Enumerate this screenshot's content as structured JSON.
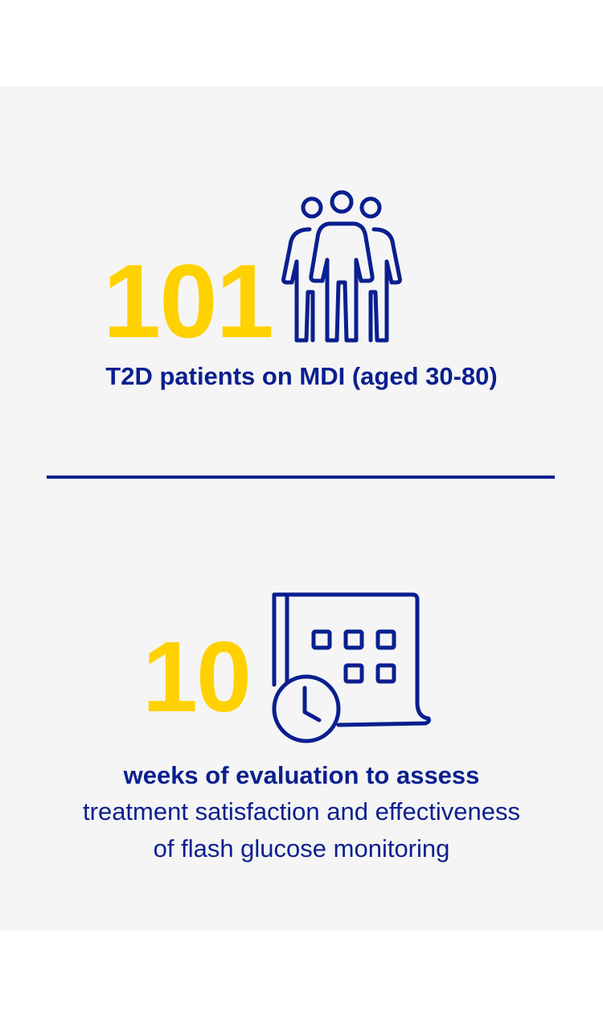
{
  "colors": {
    "accent_yellow": "#ffd100",
    "brand_navy": "#0a1f8f",
    "panel_background": "#f5f5f5"
  },
  "patients": {
    "count": "101",
    "caption": "T2D patients on MDI (aged 30-80)",
    "icon": "people-group-icon"
  },
  "evaluation": {
    "count": "10",
    "caption_bold": "weeks of evaluation to assess",
    "caption_line2": "treatment satisfaction and effectiveness",
    "caption_line3": "of flash glucose monitoring",
    "icon": "calendar-clock-icon"
  }
}
